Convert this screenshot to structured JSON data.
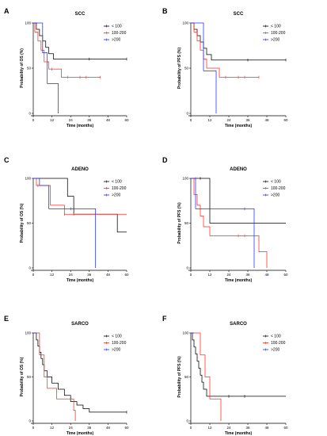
{
  "chart_data": [
    {
      "type": "line",
      "panel": "A",
      "title": "SCC",
      "xlabel": "Time (months)",
      "ylabel": "Probability of OS (%)",
      "xlim": [
        0,
        60
      ],
      "ylim": [
        0,
        100
      ],
      "xticks": [
        0,
        12,
        24,
        36,
        48,
        60
      ],
      "yticks": [
        0,
        50,
        100
      ],
      "legend_position": "top-right",
      "series": [
        {
          "name": "< 100",
          "color": "#000000",
          "steps": [
            [
              0,
              100
            ],
            [
              2,
              93
            ],
            [
              4,
              86
            ],
            [
              6,
              80
            ],
            [
              8,
              73
            ],
            [
              10,
              66
            ],
            [
              13,
              60
            ],
            [
              60,
              60
            ]
          ],
          "censors": [
            [
              36,
              60
            ],
            [
              60,
              60
            ]
          ]
        },
        {
          "name": "100-200",
          "color": "#ff2a1a",
          "steps": [
            [
              0,
              100
            ],
            [
              1,
              90
            ],
            [
              3,
              80
            ],
            [
              5,
              70
            ],
            [
              7,
              57
            ],
            [
              10,
              49
            ],
            [
              16,
              49
            ],
            [
              18,
              40
            ],
            [
              43,
              40
            ]
          ],
          "censors": [
            [
              12,
              49
            ],
            [
              22,
              40
            ],
            [
              30,
              40
            ],
            [
              34,
              40
            ],
            [
              43,
              40
            ]
          ]
        },
        {
          "name": ">200",
          "color": "#1f2bff",
          "steps": [
            [
              0,
              100
            ],
            [
              3,
              100
            ],
            [
              6,
              67
            ],
            [
              9,
              33
            ],
            [
              16,
              33
            ],
            [
              16,
              0
            ]
          ],
          "censors": []
        }
      ]
    },
    {
      "type": "line",
      "panel": "B",
      "title": "SCC",
      "xlabel": "Time (months)",
      "ylabel": "Probability of PFS (%)",
      "xlim": [
        0,
        60
      ],
      "ylim": [
        0,
        100
      ],
      "xticks": [
        0,
        12,
        24,
        36,
        48,
        60
      ],
      "yticks": [
        0,
        50,
        100
      ],
      "legend_position": "top-right",
      "series": [
        {
          "name": "< 100",
          "color": "#000000",
          "steps": [
            [
              0,
              100
            ],
            [
              2,
              93
            ],
            [
              4,
              86
            ],
            [
              6,
              79
            ],
            [
              8,
              72
            ],
            [
              10,
              65
            ],
            [
              13,
              59
            ],
            [
              60,
              59
            ]
          ],
          "censors": [
            [
              36,
              59
            ],
            [
              60,
              59
            ]
          ]
        },
        {
          "name": "100-200",
          "color": "#ff2a1a",
          "steps": [
            [
              0,
              100
            ],
            [
              2,
              90
            ],
            [
              4,
              80
            ],
            [
              6,
              70
            ],
            [
              8,
              60
            ],
            [
              10,
              50
            ],
            [
              16,
              50
            ],
            [
              18,
              40
            ],
            [
              43,
              40
            ]
          ],
          "censors": [
            [
              22,
              40
            ],
            [
              30,
              40
            ],
            [
              34,
              40
            ],
            [
              43,
              40
            ]
          ]
        },
        {
          "name": ">200",
          "color": "#1f2bff",
          "steps": [
            [
              0,
              100
            ],
            [
              6,
              100
            ],
            [
              8,
              47
            ],
            [
              16,
              47
            ],
            [
              16,
              0
            ]
          ],
          "censors": []
        }
      ]
    },
    {
      "type": "line",
      "panel": "C",
      "title": "ADENO",
      "xlabel": "Time (months)",
      "ylabel": "Probability of OS (%)",
      "xlim": [
        0,
        60
      ],
      "ylim": [
        0,
        100
      ],
      "xticks": [
        0,
        12,
        24,
        36,
        48,
        60
      ],
      "yticks": [
        0,
        50,
        100
      ],
      "legend_position": "top-right",
      "series": [
        {
          "name": "< 100",
          "color": "#000000",
          "steps": [
            [
              0,
              100
            ],
            [
              20,
              100
            ],
            [
              22,
              80
            ],
            [
              26,
              60
            ],
            [
              52,
              60
            ],
            [
              54,
              40
            ],
            [
              60,
              40
            ]
          ],
          "censors": []
        },
        {
          "name": "100-200",
          "color": "#ff2a1a",
          "steps": [
            [
              0,
              100
            ],
            [
              2,
              92
            ],
            [
              11,
              70
            ],
            [
              18,
              70
            ],
            [
              20,
              60
            ],
            [
              60,
              60
            ]
          ],
          "censors": [
            [
              3,
              92
            ],
            [
              20,
              60
            ],
            [
              26,
              60
            ]
          ]
        },
        {
          "name": ">200",
          "color": "#1f2bff",
          "steps": [
            [
              0,
              100
            ],
            [
              2,
              100
            ],
            [
              4,
              92
            ],
            [
              10,
              66
            ],
            [
              38,
              66
            ],
            [
              40,
              0
            ]
          ],
          "censors": [
            [
              24,
              66
            ]
          ]
        }
      ]
    },
    {
      "type": "line",
      "panel": "D",
      "title": "ADENO",
      "xlabel": "Time (months)",
      "ylabel": "Probability of PFS (%)",
      "xlim": [
        0,
        60
      ],
      "ylim": [
        0,
        100
      ],
      "xticks": [
        0,
        12,
        24,
        36,
        48,
        60
      ],
      "yticks": [
        0,
        50,
        100
      ],
      "legend_position": "top-right",
      "series": [
        {
          "name": "< 100",
          "color": "#000000",
          "steps": [
            [
              0,
              100
            ],
            [
              6,
              100
            ],
            [
              12,
              50
            ],
            [
              60,
              50
            ]
          ],
          "censors": [
            [
              6,
              100
            ]
          ]
        },
        {
          "name": "100-200",
          "color": "#ff2a1a",
          "steps": [
            [
              0,
              100
            ],
            [
              2,
              82
            ],
            [
              4,
              70
            ],
            [
              6,
              58
            ],
            [
              8,
              46
            ],
            [
              12,
              36
            ],
            [
              40,
              36
            ],
            [
              43,
              18
            ],
            [
              47,
              18
            ],
            [
              48,
              0
            ]
          ],
          "censors": [
            [
              3,
              100
            ],
            [
              30,
              36
            ],
            [
              34,
              36
            ]
          ]
        },
        {
          "name": ">200",
          "color": "#1f2bff",
          "steps": [
            [
              0,
              100
            ],
            [
              2,
              100
            ],
            [
              3,
              66
            ],
            [
              38,
              66
            ],
            [
              40,
              0
            ]
          ],
          "censors": [
            [
              34,
              66
            ]
          ]
        }
      ]
    },
    {
      "type": "line",
      "panel": "E",
      "title": "SARCO",
      "xlabel": "Time (months)",
      "ylabel": "Probability of OS (%)",
      "xlim": [
        0,
        60
      ],
      "ylim": [
        0,
        100
      ],
      "xticks": [
        0,
        12,
        24,
        36,
        48,
        60
      ],
      "yticks": [
        0,
        50,
        100
      ],
      "legend_position": "top-right",
      "series": [
        {
          "name": "< 100",
          "color": "#000000",
          "steps": [
            [
              0,
              100
            ],
            [
              2,
              92
            ],
            [
              3,
              85
            ],
            [
              4,
              78
            ],
            [
              5,
              71
            ],
            [
              6,
              64
            ],
            [
              7,
              57
            ],
            [
              9,
              50
            ],
            [
              12,
              43
            ],
            [
              16,
              36
            ],
            [
              20,
              29
            ],
            [
              24,
              22
            ],
            [
              28,
              18
            ],
            [
              32,
              14
            ],
            [
              36,
              10
            ],
            [
              60,
              10
            ]
          ],
          "censors": [
            [
              60,
              10
            ]
          ]
        },
        {
          "name": "100-200",
          "color": "#ff2a1a",
          "steps": [
            [
              0,
              100
            ],
            [
              2,
              100
            ],
            [
              4,
              75
            ],
            [
              7,
              50
            ],
            [
              9,
              37
            ],
            [
              13,
              37
            ],
            [
              15,
              25
            ],
            [
              26,
              12
            ],
            [
              27,
              0
            ]
          ],
          "censors": []
        },
        {
          "name": ">200",
          "color": "#1f2bff",
          "steps": [
            [
              0,
              100
            ],
            [
              2,
              100
            ]
          ],
          "censors": []
        }
      ]
    },
    {
      "type": "line",
      "panel": "F",
      "title": "SARCO",
      "xlabel": "Time (months)",
      "ylabel": "Probability of PFS (%)",
      "xlim": [
        0,
        60
      ],
      "ylim": [
        0,
        100
      ],
      "xticks": [
        0,
        12,
        24,
        36,
        48,
        60
      ],
      "yticks": [
        0,
        50,
        100
      ],
      "legend_position": "top-right",
      "series": [
        {
          "name": "< 100",
          "color": "#000000",
          "steps": [
            [
              0,
              100
            ],
            [
              1,
              92
            ],
            [
              2,
              84
            ],
            [
              3,
              76
            ],
            [
              4,
              68
            ],
            [
              5,
              60
            ],
            [
              6,
              52
            ],
            [
              7,
              44
            ],
            [
              8,
              36
            ],
            [
              10,
              28
            ],
            [
              60,
              28
            ]
          ],
          "censors": [
            [
              24,
              28
            ],
            [
              34,
              28
            ]
          ]
        },
        {
          "name": "100-200",
          "color": "#ff2a1a",
          "steps": [
            [
              0,
              100
            ],
            [
              3,
              100
            ],
            [
              6,
              75
            ],
            [
              9,
              50
            ],
            [
              12,
              25
            ],
            [
              18,
              25
            ],
            [
              19,
              0
            ]
          ],
          "censors": []
        },
        {
          "name": ">200",
          "color": "#1f2bff",
          "steps": [
            [
              0,
              100
            ],
            [
              2,
              100
            ]
          ],
          "censors": []
        }
      ]
    }
  ]
}
